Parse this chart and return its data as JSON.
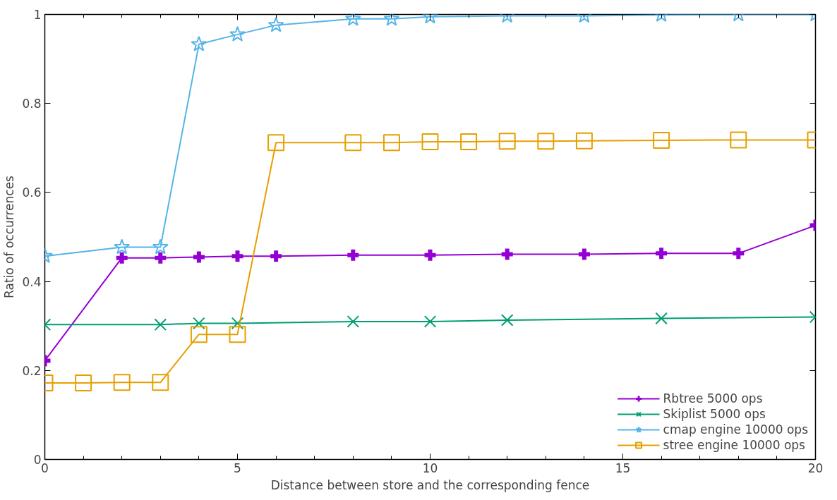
{
  "chart_data": {
    "type": "line",
    "xlabel": "Distance between store and the corresponding fence",
    "ylabel": "Ratio of occurrences",
    "xlim": [
      0,
      20
    ],
    "xticks": [
      0,
      5,
      10,
      15,
      20
    ],
    "ylim": [
      0,
      1
    ],
    "yticks": [
      0,
      0.2,
      0.4,
      0.6,
      0.8,
      1
    ],
    "grid": false,
    "legend": "bottom right",
    "series": [
      {
        "name": "Rbtree 5000 ops",
        "color": "#9400d3",
        "marker": "cross",
        "x": [
          0,
          2,
          3,
          4,
          5,
          6,
          8,
          10,
          12,
          14,
          16,
          18,
          20
        ],
        "values": [
          0.222,
          0.453,
          0.453,
          0.455,
          0.457,
          0.457,
          0.459,
          0.459,
          0.461,
          0.461,
          0.463,
          0.463,
          0.526
        ]
      },
      {
        "name": "Skiplist 5000 ops",
        "color": "#009e73",
        "marker": "x",
        "x": [
          0,
          3,
          4,
          5,
          8,
          10,
          12,
          16,
          20
        ],
        "values": [
          0.303,
          0.303,
          0.306,
          0.306,
          0.31,
          0.31,
          0.313,
          0.317,
          0.32
        ]
      },
      {
        "name": "cmap engine 10000 ops",
        "color": "#56b4e9",
        "marker": "star",
        "x": [
          0,
          2,
          3,
          4,
          5,
          6,
          8,
          9,
          10,
          12,
          14,
          16,
          18,
          20
        ],
        "values": [
          0.457,
          0.477,
          0.477,
          0.933,
          0.955,
          0.976,
          0.99,
          0.99,
          0.995,
          0.997,
          0.997,
          0.999,
          1,
          1
        ]
      },
      {
        "name": "stree engine 10000 ops",
        "color": "#e69f00",
        "marker": "square",
        "x": [
          0,
          1,
          2,
          3,
          4,
          5,
          6,
          8,
          9,
          10,
          11,
          12,
          13,
          14,
          16,
          18,
          20
        ],
        "values": [
          0.172,
          0.172,
          0.173,
          0.173,
          0.281,
          0.281,
          0.712,
          0.712,
          0.712,
          0.714,
          0.714,
          0.715,
          0.715,
          0.716,
          0.717,
          0.718,
          0.718
        ]
      }
    ]
  }
}
